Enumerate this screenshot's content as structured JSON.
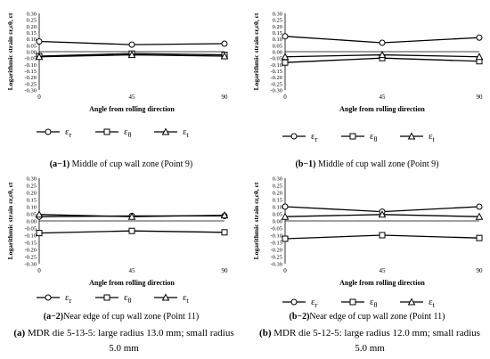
{
  "chart_data": [
    {
      "type": "line",
      "ylabel": "Logarithmic strain εr,εθ, εt",
      "xlabel": "Angle from rolling direction",
      "x": [
        0,
        45,
        90
      ],
      "x_ticks": [
        "0",
        "45",
        "90"
      ],
      "ylim": [
        -0.3,
        0.3
      ],
      "y_ticks": [
        "0.30",
        "0.25",
        "0.20",
        "0.15",
        "0.10",
        "0.05",
        "0.00",
        "-0.05",
        "-0.10",
        "-0.15",
        "-0.20",
        "-0.25",
        "-0.30"
      ],
      "legend_position": "bottom",
      "series": [
        {
          "name": "εr",
          "marker": "circle",
          "values": [
            0.08,
            0.055,
            0.063
          ]
        },
        {
          "name": "εθ",
          "marker": "square",
          "values": [
            -0.035,
            -0.015,
            -0.025
          ]
        },
        {
          "name": "εt",
          "marker": "triangle",
          "values": [
            -0.04,
            -0.025,
            -0.035
          ]
        }
      ],
      "caption_tag": "(a−1)",
      "caption_text": " Middle of cup wall zone (Point 9)"
    },
    {
      "type": "line",
      "ylabel": "Logarithmic strain εr,εθ, εt",
      "xlabel": "Angle from rolling direction",
      "x": [
        0,
        45,
        90
      ],
      "x_ticks": [
        "0",
        "45",
        "90"
      ],
      "ylim": [
        -0.3,
        0.3
      ],
      "y_ticks": [
        "0.30",
        "0.25",
        "0.20",
        "0.15",
        "0.10",
        "0.05",
        "0.00",
        "-0.05",
        "-0.10",
        "-0.15",
        "-0.20",
        "-0.25",
        "-0.30"
      ],
      "legend_position": "bottom",
      "series": [
        {
          "name": "εr",
          "marker": "circle",
          "values": [
            0.12,
            0.07,
            0.11
          ]
        },
        {
          "name": "εθ",
          "marker": "square",
          "values": [
            -0.085,
            -0.05,
            -0.075
          ]
        },
        {
          "name": "εt",
          "marker": "triangle",
          "values": [
            -0.04,
            -0.025,
            -0.04
          ]
        }
      ],
      "caption_tag": "(b−1)",
      "caption_text": " Middle of cup wall zone (Point 9)"
    },
    {
      "type": "line",
      "ylabel": "Logarithmic strain εr,εθ, εt",
      "xlabel": "Angle from rolling direction",
      "x": [
        0,
        45,
        90
      ],
      "x_ticks": [
        "0",
        "45",
        "90"
      ],
      "ylim": [
        -0.3,
        0.3
      ],
      "y_ticks": [
        "0.30",
        "0.25",
        "0.20",
        "0.15",
        "0.10",
        "0.05",
        "0.00",
        "-0.05",
        "-0.10",
        "-0.15",
        "-0.20",
        "-0.25",
        "-0.30"
      ],
      "legend_position": "bottom",
      "series": [
        {
          "name": "εr",
          "marker": "circle",
          "values": [
            0.03,
            0.035,
            0.035
          ]
        },
        {
          "name": "εθ",
          "marker": "square",
          "values": [
            -0.085,
            -0.07,
            -0.08
          ]
        },
        {
          "name": "εt",
          "marker": "triangle",
          "values": [
            0.045,
            0.03,
            0.04
          ]
        }
      ],
      "caption_tag": "(a−2)",
      "caption_text": "Near edge of cup wall zone (Point 11)"
    },
    {
      "type": "line",
      "ylabel": "Logarithmic strain εr,εθ, εt",
      "xlabel": "Angle from rolling direction",
      "x": [
        0,
        45,
        90
      ],
      "x_ticks": [
        "0",
        "45",
        "90"
      ],
      "ylim": [
        -0.3,
        0.3
      ],
      "y_ticks": [
        "0.30",
        "0.25",
        "0.20",
        "0.15",
        "0.10",
        "0.05",
        "0.00",
        "-0.05",
        "-0.10",
        "-0.15",
        "-0.20",
        "-0.25",
        "-0.30"
      ],
      "legend_position": "bottom",
      "series": [
        {
          "name": "εr",
          "marker": "circle",
          "values": [
            0.1,
            0.065,
            0.1
          ]
        },
        {
          "name": "εθ",
          "marker": "square",
          "values": [
            -0.125,
            -0.1,
            -0.12
          ]
        },
        {
          "name": "εt",
          "marker": "triangle",
          "values": [
            0.03,
            0.045,
            0.03
          ]
        }
      ],
      "caption_tag": "(b−2)",
      "caption_text": "Near edge of cup wall zone (Point 11)"
    }
  ],
  "figure_captions": [
    {
      "tag": "(a)",
      "text": " MDR die 5-13-5: large radius 13.0 mm; small radius 5.0 mm"
    },
    {
      "tag": "(b)",
      "text": " MDR die 5-12-5: large radius 12.0 mm; small radius 5.0 mm"
    }
  ]
}
